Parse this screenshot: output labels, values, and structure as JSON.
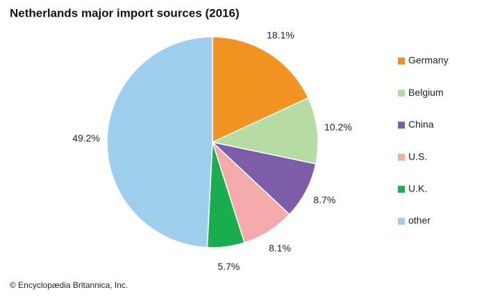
{
  "chart_data": {
    "type": "pie",
    "title": "Netherlands major import sources (2016)",
    "categories": [
      "Germany",
      "Belgium",
      "China",
      "U.S.",
      "U.K.",
      "other"
    ],
    "values": [
      18.1,
      10.2,
      8.7,
      8.1,
      5.7,
      49.2
    ],
    "value_labels": [
      "18.1%",
      "10.2%",
      "8.7%",
      "8.1%",
      "5.7%",
      "49.2%"
    ],
    "colors": [
      "#f39322",
      "#b6dba3",
      "#7b5ea7",
      "#f4aaa8",
      "#1aae4f",
      "#9fcfee"
    ],
    "legend": "right",
    "credit": "© Encyclopædia Britannica, Inc."
  }
}
